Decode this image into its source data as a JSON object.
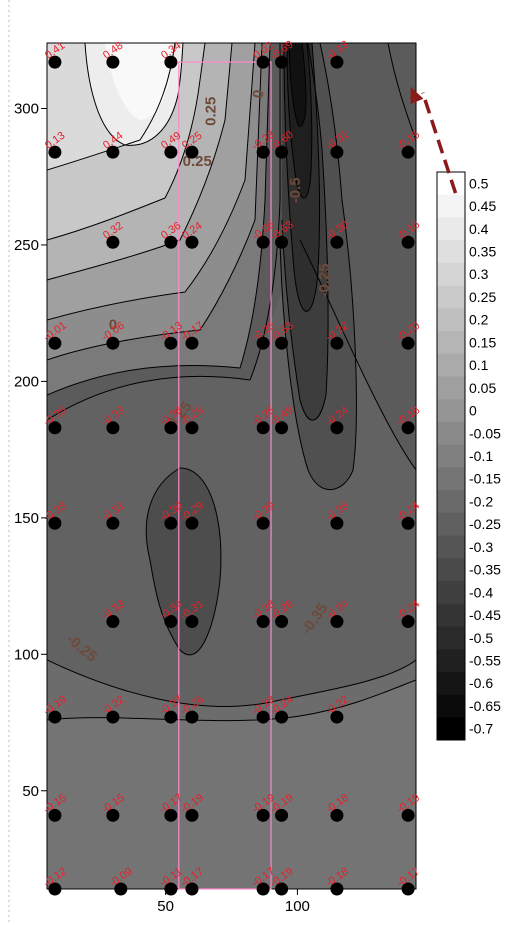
{
  "chart_data": {
    "type": "heatmap",
    "title": "",
    "xlabel": "",
    "ylabel": "",
    "xlim": [
      5,
      145
    ],
    "ylim": [
      14,
      324
    ],
    "x_ticks": [
      50,
      100
    ],
    "y_ticks": [
      50,
      100,
      150,
      200,
      250,
      300
    ],
    "colorbar": {
      "levels": [
        0.5,
        0.45,
        0.4,
        0.35,
        0.3,
        0.25,
        0.2,
        0.15,
        0.1,
        0.05,
        0,
        -0.05,
        -0.1,
        -0.15,
        -0.2,
        -0.25,
        -0.3,
        -0.35,
        -0.4,
        -0.45,
        -0.5,
        -0.55,
        -0.6,
        -0.65,
        -0.7
      ],
      "labels": [
        "0.5",
        "0.45",
        "0.4",
        "0.35",
        "0.3",
        "0.25",
        "0.2",
        "0.15",
        "0.1",
        "0.05",
        "0",
        "-0.05",
        "-0.1",
        "-0.15",
        "-0.2",
        "-0.25",
        "-0.3",
        "-0.35",
        "-0.4",
        "-0.45",
        "-0.5",
        "-0.55",
        "-0.6",
        "-0.65",
        "-0.7"
      ]
    },
    "contour_labels": [
      {
        "text": "0.25",
        "x": 69,
        "y": 299,
        "rotate": -90
      },
      {
        "text": "0.25",
        "x": 62,
        "y": 279,
        "rotate": 0
      },
      {
        "text": "0",
        "x": 87,
        "y": 305,
        "rotate": -80
      },
      {
        "text": "0",
        "x": 30,
        "y": 219,
        "rotate": 0
      },
      {
        "text": "-0.5",
        "x": 101,
        "y": 270,
        "rotate": -90
      },
      {
        "text": "-0.25",
        "x": 112,
        "y": 237,
        "rotate": -90
      },
      {
        "text": "-0.25",
        "x": 56,
        "y": 186,
        "rotate": -50
      },
      {
        "text": "-0.25",
        "x": 17,
        "y": 101,
        "rotate": 40
      },
      {
        "text": "-0.35",
        "x": 108,
        "y": 112,
        "rotate": -55
      }
    ],
    "highlight_rect": {
      "x0": 55,
      "x1": 90,
      "y0": 14,
      "y1": 317
    },
    "arrow": {
      "from": [
        160,
        269
      ],
      "to": [
        143,
        308
      ]
    },
    "points": [
      {
        "x": 8,
        "y": 317,
        "label": "0.41"
      },
      {
        "x": 30,
        "y": 317,
        "label": "0.48"
      },
      {
        "x": 52,
        "y": 317,
        "label": "0.34"
      },
      {
        "x": 87,
        "y": 317,
        "label": "0.02"
      },
      {
        "x": 94,
        "y": 317,
        "label": "-0.69"
      },
      {
        "x": 115,
        "y": 317,
        "label": "-0.18"
      },
      {
        "x": 8,
        "y": 284,
        "label": "0.13"
      },
      {
        "x": 30,
        "y": 284,
        "label": "0.44"
      },
      {
        "x": 52,
        "y": 284,
        "label": "0.49"
      },
      {
        "x": 60,
        "y": 284,
        "label": "0.25"
      },
      {
        "x": 87,
        "y": 284,
        "label": "-0.23"
      },
      {
        "x": 94,
        "y": 284,
        "label": "-0.60"
      },
      {
        "x": 115,
        "y": 284,
        "label": "-0.31"
      },
      {
        "x": 142,
        "y": 284,
        "label": "-0.15"
      },
      {
        "x": 30,
        "y": 251,
        "label": "0.32"
      },
      {
        "x": 52,
        "y": 251,
        "label": "0.36"
      },
      {
        "x": 60,
        "y": 251,
        "label": "0.24"
      },
      {
        "x": 87,
        "y": 251,
        "label": "-0.05"
      },
      {
        "x": 94,
        "y": 251,
        "label": "-0.63"
      },
      {
        "x": 115,
        "y": 251,
        "label": "-0.30"
      },
      {
        "x": 142,
        "y": 251,
        "label": "-0.16"
      },
      {
        "x": 8,
        "y": 214,
        "label": "-0.01"
      },
      {
        "x": 30,
        "y": 214,
        "label": "-0.06"
      },
      {
        "x": 52,
        "y": 214,
        "label": "-0.13"
      },
      {
        "x": 60,
        "y": 214,
        "label": "-0.17"
      },
      {
        "x": 87,
        "y": 214,
        "label": "-0.25"
      },
      {
        "x": 94,
        "y": 214,
        "label": "-0.53"
      },
      {
        "x": 115,
        "y": 214,
        "label": "-0.22"
      },
      {
        "x": 142,
        "y": 214,
        "label": "-0.20"
      },
      {
        "x": 8,
        "y": 183,
        "label": "-0.25"
      },
      {
        "x": 30,
        "y": 183,
        "label": "-0.23"
      },
      {
        "x": 52,
        "y": 183,
        "label": "-0.26"
      },
      {
        "x": 60,
        "y": 183,
        "label": "-0.25"
      },
      {
        "x": 87,
        "y": 183,
        "label": "-0.25"
      },
      {
        "x": 94,
        "y": 183,
        "label": "-0.49"
      },
      {
        "x": 115,
        "y": 183,
        "label": "-0.24"
      },
      {
        "x": 142,
        "y": 183,
        "label": "-0.18"
      },
      {
        "x": 8,
        "y": 148,
        "label": "-0.28"
      },
      {
        "x": 30,
        "y": 148,
        "label": "-0.31"
      },
      {
        "x": 52,
        "y": 148,
        "label": "-0.30"
      },
      {
        "x": 60,
        "y": 148,
        "label": "-0.29"
      },
      {
        "x": 87,
        "y": 148,
        "label": "-0.29"
      },
      {
        "x": 115,
        "y": 148,
        "label": "-0.25"
      },
      {
        "x": 142,
        "y": 148,
        "label": "-0.24"
      },
      {
        "x": 30,
        "y": 112,
        "label": "-0.33"
      },
      {
        "x": 52,
        "y": 112,
        "label": "-0.34"
      },
      {
        "x": 60,
        "y": 112,
        "label": "-0.31"
      },
      {
        "x": 87,
        "y": 112,
        "label": "-0.28"
      },
      {
        "x": 94,
        "y": 112,
        "label": "-0.28"
      },
      {
        "x": 115,
        "y": 112,
        "label": "-0.24"
      },
      {
        "x": 142,
        "y": 112,
        "label": "-0.24"
      },
      {
        "x": 8,
        "y": 77,
        "label": "-0.19"
      },
      {
        "x": 30,
        "y": 77,
        "label": "-0.22"
      },
      {
        "x": 52,
        "y": 77,
        "label": "-0.27"
      },
      {
        "x": 60,
        "y": 77,
        "label": "-0.26"
      },
      {
        "x": 87,
        "y": 77,
        "label": "-0.23"
      },
      {
        "x": 94,
        "y": 77,
        "label": "-0.24"
      },
      {
        "x": 115,
        "y": 77,
        "label": "-0.22"
      },
      {
        "x": 8,
        "y": 41,
        "label": "-0.15"
      },
      {
        "x": 30,
        "y": 41,
        "label": "-0.15"
      },
      {
        "x": 52,
        "y": 41,
        "label": "-0.17"
      },
      {
        "x": 60,
        "y": 41,
        "label": "-0.19"
      },
      {
        "x": 87,
        "y": 41,
        "label": "-0.19"
      },
      {
        "x": 94,
        "y": 41,
        "label": "-0.19"
      },
      {
        "x": 115,
        "y": 41,
        "label": "-0.18"
      },
      {
        "x": 142,
        "y": 41,
        "label": "-0.19"
      },
      {
        "x": 8,
        "y": 14,
        "label": "-0.12"
      },
      {
        "x": 33,
        "y": 14,
        "label": "-0.09"
      },
      {
        "x": 52,
        "y": 14,
        "label": "-0.11"
      },
      {
        "x": 60,
        "y": 14,
        "label": "-0.17"
      },
      {
        "x": 87,
        "y": 14,
        "label": "-0.17"
      },
      {
        "x": 94,
        "y": 14,
        "label": "-0.19"
      },
      {
        "x": 115,
        "y": 14,
        "label": "-0.18"
      },
      {
        "x": 142,
        "y": 14,
        "label": "-0.17"
      }
    ]
  },
  "colors": {
    "highlight": "#ff88cc",
    "arrow": "#8b1a1a",
    "point_label": "#e8202a",
    "contour_label": "#6e4a3a",
    "point": "#000000"
  }
}
